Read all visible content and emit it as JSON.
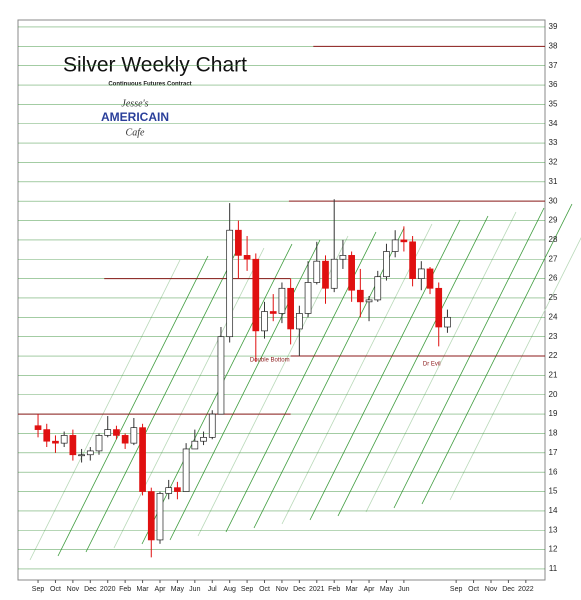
{
  "chart_data": {
    "type": "candlestick",
    "title": "Silver Weekly Chart",
    "subtitle": "Continuous Futures Contract",
    "logo": [
      "Jesse's",
      "AMERICAIN",
      "Cafe"
    ],
    "x": [
      0,
      0.5,
      1,
      1.5,
      2,
      2.5,
      3,
      3.5,
      4,
      4.5,
      5,
      5.5,
      6,
      6.5,
      7,
      7.5,
      8,
      8.5,
      9,
      9.5,
      10,
      10.5,
      11,
      11.5,
      12,
      12.5,
      13,
      13.5,
      14,
      14.5,
      15,
      15.5,
      16,
      16.5,
      17,
      17.5,
      18,
      18.5,
      19,
      19.5,
      20,
      20.5,
      21,
      21.5,
      22,
      22.5,
      23,
      23.5
    ],
    "open": [
      18.4,
      18.2,
      17.6,
      17.5,
      17.9,
      16.9,
      16.9,
      17.1,
      17.9,
      18.2,
      17.9,
      17.5,
      18.3,
      15.0,
      12.5,
      14.9,
      15.2,
      15.0,
      17.2,
      17.6,
      17.8,
      19.0,
      23.0,
      28.5,
      27.2,
      27.0,
      23.3,
      24.3,
      24.2,
      25.5,
      23.4,
      24.2,
      25.8,
      26.9,
      25.5,
      27.0,
      27.2,
      25.4,
      24.8,
      24.9,
      26.1,
      27.4,
      28.0,
      27.9,
      26.0,
      26.5,
      25.5,
      23.5
    ],
    "high": [
      19.0,
      18.5,
      17.9,
      18.1,
      18.2,
      17.2,
      17.3,
      18.0,
      18.9,
      18.4,
      18.0,
      18.8,
      18.5,
      15.2,
      15.0,
      15.6,
      15.5,
      17.5,
      18.2,
      18.1,
      19.2,
      23.5,
      29.9,
      29.0,
      28.2,
      27.3,
      24.8,
      25.2,
      25.8,
      26.0,
      24.6,
      26.9,
      27.9,
      27.2,
      30.1,
      28.0,
      27.4,
      26.5,
      25.1,
      26.4,
      27.8,
      28.5,
      28.7,
      28.2,
      26.9,
      26.6,
      25.8,
      24.4
    ],
    "low": [
      17.8,
      17.3,
      17.0,
      17.3,
      16.6,
      16.5,
      16.6,
      16.9,
      17.8,
      17.7,
      17.2,
      17.4,
      14.8,
      11.6,
      12.3,
      14.6,
      14.6,
      15.0,
      17.2,
      17.4,
      17.7,
      19.0,
      22.7,
      26.0,
      26.4,
      21.7,
      22.9,
      23.8,
      23.7,
      22.6,
      22.0,
      24.0,
      25.7,
      24.7,
      25.3,
      26.5,
      24.8,
      24.0,
      23.8,
      24.8,
      25.9,
      27.1,
      27.4,
      25.6,
      25.4,
      25.2,
      22.5,
      23.2
    ],
    "close": [
      18.2,
      17.6,
      17.5,
      17.9,
      16.9,
      16.9,
      17.1,
      17.9,
      18.2,
      17.9,
      17.5,
      18.3,
      15.0,
      12.5,
      14.9,
      15.2,
      15.0,
      17.2,
      17.6,
      17.8,
      19.0,
      23.0,
      28.5,
      27.2,
      27.0,
      23.3,
      24.3,
      24.2,
      25.5,
      23.4,
      24.2,
      25.8,
      26.9,
      25.5,
      27.0,
      27.2,
      25.4,
      24.8,
      24.9,
      26.1,
      27.4,
      28.0,
      27.9,
      26.0,
      26.5,
      25.5,
      23.5,
      24.0
    ],
    "up_color": "#ffffff",
    "down_color": "#e01010",
    "xlim": [
      -1.15,
      29.1
    ],
    "ylim": [
      10.43,
      39.36
    ],
    "xticks": [
      {
        "value": 0,
        "label": "Sep"
      },
      {
        "value": 1,
        "label": "Oct"
      },
      {
        "value": 2,
        "label": "Nov"
      },
      {
        "value": 3,
        "label": "Dec"
      },
      {
        "value": 4,
        "label": "2020"
      },
      {
        "value": 5,
        "label": "Feb"
      },
      {
        "value": 6,
        "label": "Mar"
      },
      {
        "value": 7,
        "label": "Apr"
      },
      {
        "value": 8,
        "label": "May"
      },
      {
        "value": 9,
        "label": "Jun"
      },
      {
        "value": 10,
        "label": "Jul"
      },
      {
        "value": 11,
        "label": "Aug"
      },
      {
        "value": 12,
        "label": "Sep"
      },
      {
        "value": 13,
        "label": "Oct"
      },
      {
        "value": 14,
        "label": "Nov"
      },
      {
        "value": 15,
        "label": "Dec"
      },
      {
        "value": 16,
        "label": "2021"
      },
      {
        "value": 17,
        "label": "Feb"
      },
      {
        "value": 18,
        "label": "Mar"
      },
      {
        "value": 19,
        "label": "Apr"
      },
      {
        "value": 20,
        "label": "May"
      },
      {
        "value": 21,
        "label": "Jun"
      },
      {
        "value": 24,
        "label": "Sep"
      },
      {
        "value": 25,
        "label": "Oct"
      },
      {
        "value": 26,
        "label": "Nov"
      },
      {
        "value": 27,
        "label": "Dec"
      },
      {
        "value": 28,
        "label": "2022"
      }
    ],
    "yticks": [
      11,
      12,
      13,
      14,
      15,
      16,
      17,
      18,
      19,
      20,
      21,
      22,
      23,
      24,
      25,
      26,
      27,
      28,
      29,
      30,
      31,
      32,
      33,
      34,
      35,
      36,
      37,
      38,
      39
    ],
    "grid": true,
    "grid_color": "#2e8b2e",
    "reference_lines": [
      {
        "y": 38,
        "x_start": 15.8,
        "x_end": 29.1
      },
      {
        "y": 30,
        "x_start": 14.4,
        "x_end": 29.1
      },
      {
        "y": 26,
        "x_start": 3.8,
        "x_end": 14.5
      },
      {
        "y": 22,
        "x_start": 14.5,
        "x_end": 29.1
      },
      {
        "y": 19,
        "x_start": -1.15,
        "x_end": 14.5
      }
    ],
    "reference_color": "#8b1a1a",
    "annotations": [
      {
        "text": "Double Bottom",
        "x": 13.3,
        "y": 21.8
      },
      {
        "text": "Dr Evil",
        "x": 22.6,
        "y": 21.6
      }
    ]
  }
}
